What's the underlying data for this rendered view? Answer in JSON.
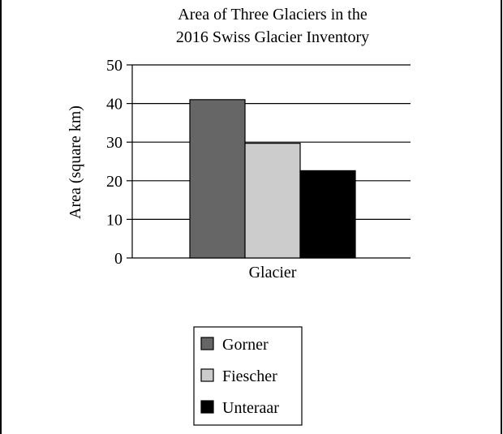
{
  "chart_data": {
    "type": "bar",
    "title_lines": [
      "Area of Three Glaciers in the",
      "2016 Swiss Glacier Inventory"
    ],
    "xlabel": "Glacier",
    "ylabel": "Area (square km)",
    "ylim": [
      0,
      50
    ],
    "yticks": [
      "0",
      "10",
      "20",
      "30",
      "40",
      "50"
    ],
    "grid": true,
    "legend_position": "bottom-center",
    "series": [
      {
        "name": "Gorner",
        "value": 41,
        "color": "#666666"
      },
      {
        "name": "Fiescher",
        "value": 29.7,
        "color": "#cccccc"
      },
      {
        "name": "Unteraar",
        "value": 22.6,
        "color": "#000000"
      }
    ]
  }
}
